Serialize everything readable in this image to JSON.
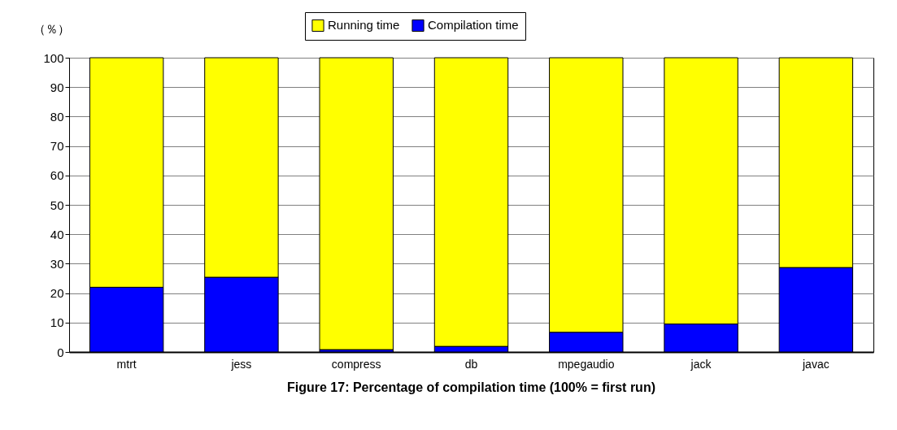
{
  "chart_data": {
    "type": "bar",
    "title": "Figure 17:  Percentage of compilation time (100% = first run)",
    "ylabel": "（％）",
    "categories": [
      "mtrt",
      "jess",
      "compress",
      "db",
      "mpegaudio",
      "jack",
      "javac"
    ],
    "stacked": true,
    "series": [
      {
        "name": "Compilation time",
        "color": "#0000ff",
        "values": [
          22,
          25.4,
          0.8,
          1.9,
          6.7,
          9.5,
          28.7
        ]
      },
      {
        "name": "Running time",
        "color": "#ffff00",
        "values": [
          78,
          74.6,
          99.2,
          98.1,
          93.3,
          90.5,
          71.3
        ]
      }
    ],
    "ylim": [
      0,
      100
    ],
    "yticks": [
      0,
      10,
      20,
      30,
      40,
      50,
      60,
      70,
      80,
      90,
      100
    ],
    "grid": "y",
    "legend": "top"
  }
}
